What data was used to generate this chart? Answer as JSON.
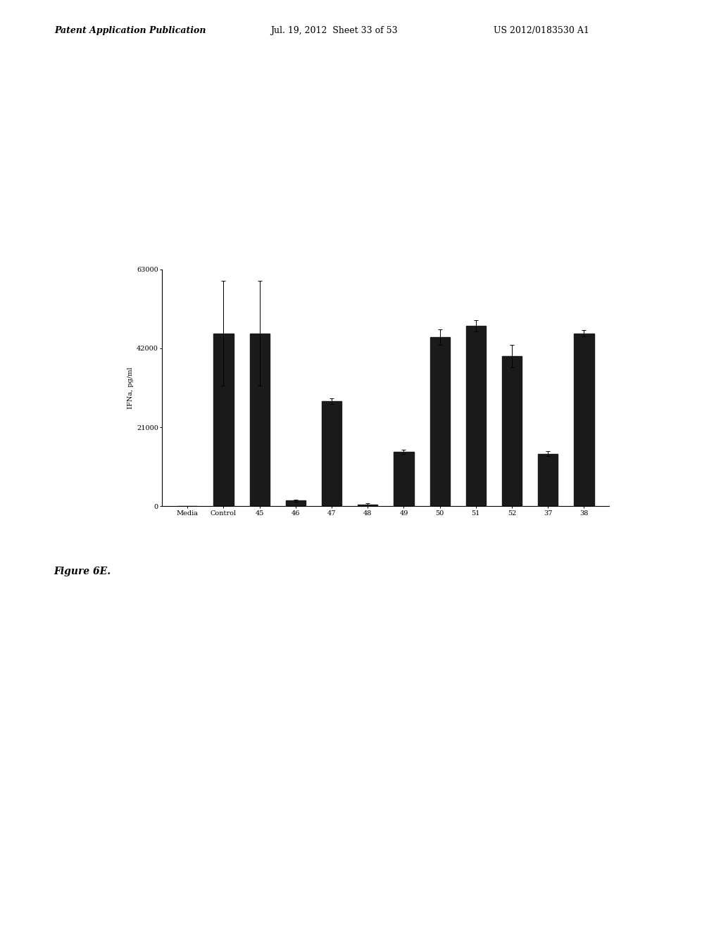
{
  "categories": [
    "Media",
    "Control",
    "45",
    "46",
    "47",
    "48",
    "49",
    "50",
    "51",
    "52",
    "37",
    "38"
  ],
  "values": [
    0,
    46000,
    46000,
    1500,
    28000,
    500,
    14500,
    45000,
    48000,
    40000,
    14000,
    46000
  ],
  "errors": [
    0,
    14000,
    14000,
    300,
    700,
    400,
    500,
    2000,
    1500,
    3000,
    600,
    800
  ],
  "bar_color": "#1a1a1a",
  "bar_width": 0.55,
  "ylim": [
    0,
    63000
  ],
  "yticks": [
    0,
    21000,
    42000,
    63000
  ],
  "ytick_labels": [
    "0",
    "21000",
    "42000",
    "63000"
  ],
  "ylabel": "IFNa, pg/ml",
  "figure_label": "Figure 6E.",
  "background_color": "#ffffff",
  "header_left": "Patent Application Publication",
  "header_center": "Jul. 19, 2012  Sheet 33 of 53",
  "header_right": "US 2012/0183530 A1",
  "header_fontsize": 9,
  "axis_fontsize": 7,
  "tick_fontsize": 7,
  "figure_label_fontsize": 10
}
